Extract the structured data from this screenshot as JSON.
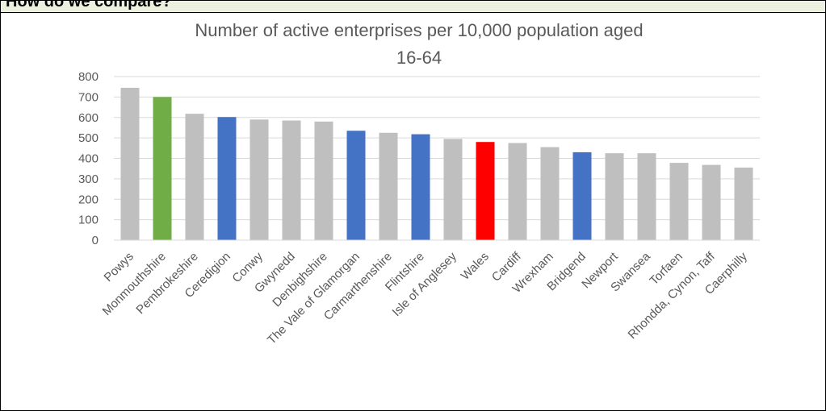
{
  "header": {
    "text": "How do we compare?"
  },
  "chart_data": {
    "type": "bar",
    "title": "Number of active enterprises per 10,000 population aged 16-64",
    "title_lines": [
      "Number of active enterprises per 10,000 population aged",
      "16-64"
    ],
    "xlabel": "",
    "ylabel": "",
    "ylim": [
      0,
      800
    ],
    "yticks": [
      0,
      100,
      200,
      300,
      400,
      500,
      600,
      700,
      800
    ],
    "grid": true,
    "legend": "none",
    "categories": [
      "Powys",
      "Monmouthshire",
      "Pembrokeshire",
      "Ceredigion",
      "Conwy",
      "Gwynedd",
      "Denbighshire",
      "The Vale of Glamorgan",
      "Carmarthenshire",
      "Flintshire",
      "Isle of Anglesey",
      "Wales",
      "Cardiff",
      "Wrexham",
      "Bridgend",
      "Newport",
      "Swansea",
      "Torfaen",
      "Rhondda, Cynon, Taff",
      "Caerphilly"
    ],
    "values": [
      745,
      700,
      618,
      602,
      590,
      585,
      580,
      535,
      525,
      518,
      495,
      480,
      475,
      455,
      430,
      425,
      425,
      378,
      368,
      355
    ],
    "bar_colors": [
      "#bfbfbf",
      "#70ad47",
      "#bfbfbf",
      "#4472c4",
      "#bfbfbf",
      "#bfbfbf",
      "#bfbfbf",
      "#4472c4",
      "#bfbfbf",
      "#4472c4",
      "#bfbfbf",
      "#ff0000",
      "#bfbfbf",
      "#bfbfbf",
      "#4472c4",
      "#bfbfbf",
      "#bfbfbf",
      "#bfbfbf",
      "#bfbfbf",
      "#bfbfbf"
    ],
    "colors": {
      "default": "#bfbfbf",
      "highlight": "#70ad47",
      "comparator": "#4472c4",
      "wales": "#ff0000"
    }
  }
}
